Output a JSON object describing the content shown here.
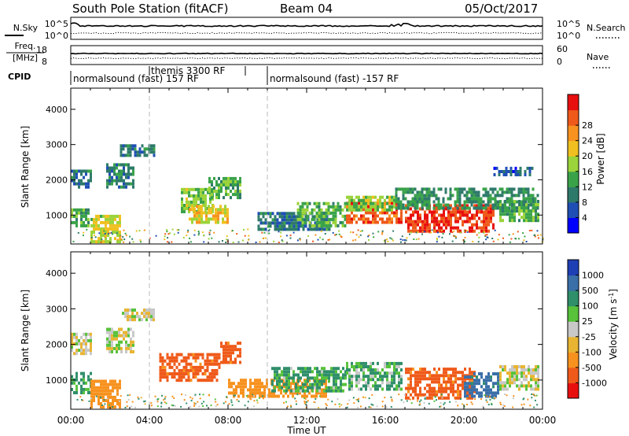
{
  "header": {
    "station": "South Pole Station (fitACF)",
    "beam": "Beam 04",
    "date": "05/Oct/2017"
  },
  "left_labels": {
    "nsky": "N.Sky",
    "freq_line1": "Freq.",
    "freq_line2": "[MHz]",
    "cpid": "CPID"
  },
  "right_labels": {
    "nsearch": "N.Search",
    "nave": "Nave"
  },
  "noise_panel": {
    "left_ticks": [
      "10^5",
      "10^0"
    ],
    "right_ticks": [
      "10^5",
      "10^0"
    ]
  },
  "freq_panel": {
    "left_ticks": [
      "18",
      "8"
    ],
    "right_ticks": [
      "60",
      "0"
    ]
  },
  "cpid_panel": {
    "segments": [
      {
        "label": "normalsound (fast) 157 RF",
        "start_hour": 0,
        "end_hour": 10
      },
      {
        "label": "themis 3300 RF",
        "start_hour": 4,
        "end_hour": 8.9
      },
      {
        "label": "normalsound (fast) -157 RF",
        "start_hour": 10,
        "end_hour": 24
      }
    ]
  },
  "xaxis": {
    "label": "Time UT",
    "ticks": [
      "00:00",
      "04:00",
      "08:00",
      "12:00",
      "16:00",
      "20:00",
      "00:00"
    ]
  },
  "yaxis": {
    "label": "Slant Range [km]",
    "ticks": [
      "1000",
      "2000",
      "3000",
      "4000"
    ]
  },
  "power_colorbar": {
    "label": "Power [dB]",
    "ticks": [
      "4",
      "8",
      "12",
      "16",
      "20",
      "24",
      "28"
    ],
    "colors": [
      "#0000ff",
      "#1f4fb4",
      "#2e7a6a",
      "#3aa34a",
      "#9bd33a",
      "#f0c020",
      "#f7921e",
      "#ef5a1a",
      "#e8100f"
    ]
  },
  "velocity_colorbar": {
    "label": "Velocity [m s^-1]",
    "ticks": [
      "1000",
      "500",
      "100",
      "25",
      "-25",
      "-100",
      "-500",
      "-1000"
    ],
    "colors": [
      "#1f3fb4",
      "#3a6fa8",
      "#2f8f6a",
      "#57c23a",
      "#c8c8c8",
      "#e8b432",
      "#f7921e",
      "#ef5a1a",
      "#e8100f"
    ]
  },
  "chart_data": [
    {
      "type": "heatmap",
      "title": "Power",
      "xlabel": "Time UT",
      "ylabel": "Slant Range [km]",
      "xlim": [
        0,
        24
      ],
      "ylim": [
        180,
        4600
      ],
      "colorbar": {
        "label": "Power [dB]",
        "ticks": [
          4,
          8,
          12,
          16,
          20,
          24,
          28
        ]
      },
      "regions": [
        {
          "t0": 0.0,
          "t1": 1.0,
          "r0": 1750,
          "r1": 2250,
          "level": 8
        },
        {
          "t0": 0.0,
          "t1": 0.9,
          "r0": 650,
          "r1": 1150,
          "level": 12
        },
        {
          "t0": 1.0,
          "t1": 2.5,
          "r0": 200,
          "r1": 950,
          "level": 16
        },
        {
          "t0": 2.5,
          "t1": 4.2,
          "r0": 2650,
          "r1": 2950,
          "level": 8
        },
        {
          "t0": 1.8,
          "t1": 3.2,
          "r0": 1750,
          "r1": 2400,
          "level": 8
        },
        {
          "t0": 5.6,
          "t1": 7.2,
          "r0": 1050,
          "r1": 1750,
          "level": 14
        },
        {
          "t0": 7.0,
          "t1": 8.6,
          "r0": 1450,
          "r1": 2050,
          "level": 12
        },
        {
          "t0": 6.0,
          "t1": 8.0,
          "r0": 750,
          "r1": 1250,
          "level": 18
        },
        {
          "t0": 9.5,
          "t1": 13.2,
          "r0": 550,
          "r1": 1050,
          "level": 8
        },
        {
          "t0": 11.5,
          "t1": 14.0,
          "r0": 650,
          "r1": 1350,
          "level": 12
        },
        {
          "t0": 14.0,
          "t1": 16.8,
          "r0": 750,
          "r1": 1300,
          "level": 24
        },
        {
          "t0": 14.0,
          "t1": 16.5,
          "r0": 1100,
          "r1": 1550,
          "level": 14
        },
        {
          "t0": 17.0,
          "t1": 21.5,
          "r0": 500,
          "r1": 1300,
          "level": 26
        },
        {
          "t0": 16.5,
          "t1": 23.8,
          "r0": 1150,
          "r1": 1700,
          "level": 10
        },
        {
          "t0": 21.8,
          "t1": 23.8,
          "r0": 800,
          "r1": 1400,
          "level": 12
        },
        {
          "t0": 21.5,
          "t1": 23.5,
          "r0": 2100,
          "r1": 2350,
          "level": 6
        }
      ]
    },
    {
      "type": "heatmap",
      "title": "Velocity",
      "xlabel": "Time UT",
      "ylabel": "Slant Range [km]",
      "xlim": [
        0,
        24
      ],
      "ylim": [
        180,
        4600
      ],
      "colorbar": {
        "label": "Velocity [m s^-1]",
        "ticks": [
          1000,
          500,
          100,
          25,
          -25,
          -100,
          -500,
          -1000
        ]
      },
      "regions": [
        {
          "t0": 0.0,
          "t1": 1.0,
          "r0": 1700,
          "r1": 2250,
          "level": 0
        },
        {
          "t0": 1.8,
          "t1": 3.2,
          "r0": 1750,
          "r1": 2400,
          "level": 0
        },
        {
          "t0": 2.6,
          "t1": 4.2,
          "r0": 2650,
          "r1": 2950,
          "level": 0
        },
        {
          "t0": 0.0,
          "t1": 1.0,
          "r0": 600,
          "r1": 1150,
          "level": 80
        },
        {
          "t0": 1.0,
          "t1": 2.5,
          "r0": 200,
          "r1": 950,
          "level": -150
        },
        {
          "t0": 4.5,
          "t1": 7.6,
          "r0": 950,
          "r1": 1750,
          "level": -300
        },
        {
          "t0": 7.6,
          "t1": 8.6,
          "r0": 1450,
          "r1": 2050,
          "level": -300
        },
        {
          "t0": 8.0,
          "t1": 13.0,
          "r0": 500,
          "r1": 1000,
          "level": -150
        },
        {
          "t0": 10.2,
          "t1": 14.0,
          "r0": 650,
          "r1": 1350,
          "level": 80
        },
        {
          "t0": 14.0,
          "t1": 16.8,
          "r0": 700,
          "r1": 1500,
          "level": 60
        },
        {
          "t0": 17.0,
          "t1": 20.5,
          "r0": 450,
          "r1": 1300,
          "level": -300
        },
        {
          "t0": 20.0,
          "t1": 21.8,
          "r0": 500,
          "r1": 1200,
          "level": 300
        },
        {
          "t0": 21.8,
          "t1": 23.8,
          "r0": 700,
          "r1": 1400,
          "level": 0
        }
      ]
    }
  ]
}
